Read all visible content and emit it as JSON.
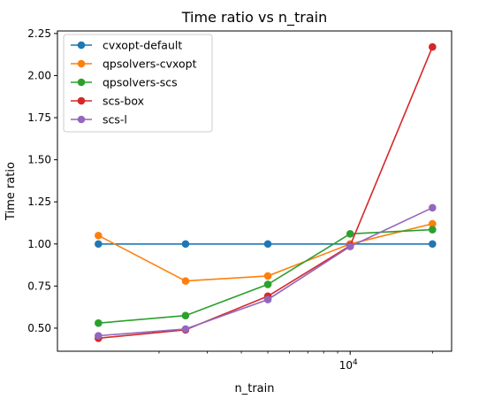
{
  "chart_data": {
    "type": "line",
    "title": "Time ratio vs n_train",
    "xlabel": "n_train",
    "ylabel": "Time ratio",
    "x_scale": "log",
    "x": [
      1200,
      2500,
      5000,
      10000,
      20000
    ],
    "xlim": [
      850,
      23500
    ],
    "ylim": [
      0.363,
      2.265
    ],
    "yticks": [
      0.5,
      0.75,
      1.0,
      1.25,
      1.5,
      1.75,
      2.0,
      2.25
    ],
    "ytick_labels": [
      "0.50",
      "0.75",
      "1.00",
      "1.25",
      "1.50",
      "1.75",
      "2.00",
      "2.25"
    ],
    "xtick_major": [
      {
        "value": 10000,
        "base": "10",
        "exp": "4"
      }
    ],
    "xtick_minor": [
      2000,
      3000,
      4000,
      5000,
      6000,
      7000,
      8000,
      9000,
      20000
    ],
    "legend_position": "top-left",
    "series": [
      {
        "name": "cvxopt-default",
        "color": "#1f77b4",
        "values": [
          1.0,
          1.0,
          1.0,
          1.0,
          1.0
        ]
      },
      {
        "name": "qpsolvers-cvxopt",
        "color": "#ff7f0e",
        "values": [
          1.05,
          0.78,
          0.81,
          1.0,
          1.12
        ]
      },
      {
        "name": "qpsolvers-scs",
        "color": "#2ca02c",
        "values": [
          0.53,
          0.575,
          0.76,
          1.06,
          1.085
        ]
      },
      {
        "name": "scs-box",
        "color": "#d62728",
        "values": [
          0.44,
          0.49,
          0.69,
          0.99,
          2.17
        ]
      },
      {
        "name": "scs-l",
        "color": "#9467bd",
        "values": [
          0.455,
          0.495,
          0.67,
          0.985,
          1.215
        ]
      }
    ]
  }
}
